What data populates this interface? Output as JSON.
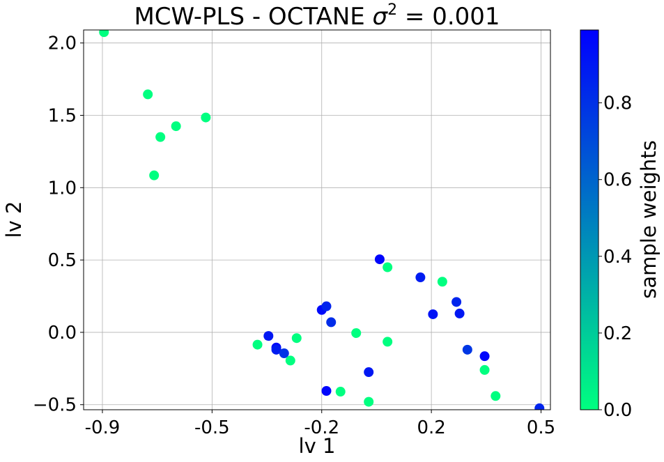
{
  "chart_data": {
    "type": "scatter",
    "title": {
      "prefix": "MCW-PLS - OCTANE ",
      "symbol": "σ",
      "exponent": "2",
      "suffix": " = 0.001"
    },
    "xlabel": "lv 1",
    "ylabel": "lv 2",
    "xlim": [
      -0.96,
      0.53
    ],
    "ylim": [
      -0.535,
      2.09
    ],
    "x_ticks": [
      -0.9,
      -0.55,
      -0.2,
      0.15,
      0.5
    ],
    "x_tick_labels": [
      "-0.9",
      "-0.5",
      "-0.2",
      "0.2",
      "0.5"
    ],
    "y_ticks": [
      -0.5,
      0.0,
      0.5,
      1.0,
      1.5,
      2.0
    ],
    "y_tick_labels": [
      "−0.5",
      "0.0",
      "0.5",
      "1.0",
      "1.5",
      "2.0"
    ],
    "grid": true,
    "colorbar": {
      "label": "sample weights",
      "colormap": "winter",
      "colors": [
        "#00ff80",
        "#0000ff"
      ],
      "range": [
        0.0,
        0.99
      ],
      "ticks": [
        0.0,
        0.2,
        0.4,
        0.6,
        0.8
      ],
      "tick_labels": [
        "0.0",
        "0.2",
        "0.4",
        "0.6",
        "0.8"
      ]
    },
    "points": [
      {
        "x": -0.895,
        "y": 2.075,
        "w": 0.0
      },
      {
        "x": -0.755,
        "y": 1.645,
        "w": 0.0
      },
      {
        "x": -0.665,
        "y": 1.425,
        "w": 0.0
      },
      {
        "x": -0.715,
        "y": 1.35,
        "w": 0.0
      },
      {
        "x": -0.57,
        "y": 1.485,
        "w": 0.0
      },
      {
        "x": -0.735,
        "y": 1.085,
        "w": 0.0
      },
      {
        "x": -0.405,
        "y": -0.085,
        "w": 0.0
      },
      {
        "x": -0.37,
        "y": -0.025,
        "w": 0.9
      },
      {
        "x": -0.345,
        "y": -0.105,
        "w": 0.95
      },
      {
        "x": -0.345,
        "y": -0.12,
        "w": 0.88
      },
      {
        "x": -0.32,
        "y": -0.145,
        "w": 0.8
      },
      {
        "x": -0.3,
        "y": -0.195,
        "w": 0.0
      },
      {
        "x": -0.28,
        "y": -0.04,
        "w": 0.0
      },
      {
        "x": -0.2,
        "y": 0.155,
        "w": 0.95
      },
      {
        "x": -0.185,
        "y": 0.18,
        "w": 0.85
      },
      {
        "x": -0.17,
        "y": 0.07,
        "w": 0.82
      },
      {
        "x": -0.185,
        "y": -0.405,
        "w": 0.97
      },
      {
        "x": -0.14,
        "y": -0.41,
        "w": 0.0
      },
      {
        "x": -0.09,
        "y": -0.005,
        "w": 0.0
      },
      {
        "x": -0.05,
        "y": -0.275,
        "w": 0.9
      },
      {
        "x": -0.05,
        "y": -0.48,
        "w": 0.0
      },
      {
        "x": -0.015,
        "y": 0.505,
        "w": 0.97
      },
      {
        "x": 0.01,
        "y": 0.45,
        "w": 0.0
      },
      {
        "x": 0.01,
        "y": -0.065,
        "w": 0.0
      },
      {
        "x": 0.115,
        "y": 0.38,
        "w": 0.88
      },
      {
        "x": 0.155,
        "y": 0.125,
        "w": 0.92
      },
      {
        "x": 0.185,
        "y": 0.35,
        "w": 0.0
      },
      {
        "x": 0.23,
        "y": 0.21,
        "w": 0.85
      },
      {
        "x": 0.24,
        "y": 0.13,
        "w": 0.9
      },
      {
        "x": 0.265,
        "y": -0.12,
        "w": 0.78
      },
      {
        "x": 0.32,
        "y": -0.165,
        "w": 0.97
      },
      {
        "x": 0.32,
        "y": -0.26,
        "w": 0.0
      },
      {
        "x": 0.355,
        "y": -0.44,
        "w": 0.0
      },
      {
        "x": 0.495,
        "y": -0.525,
        "w": 0.85
      }
    ]
  }
}
